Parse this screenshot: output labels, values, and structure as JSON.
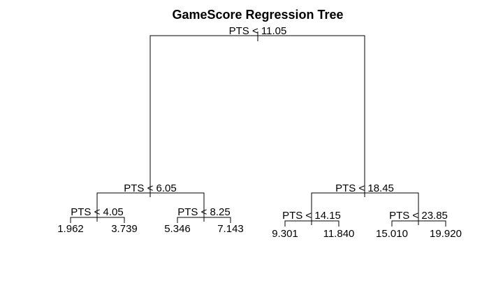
{
  "title": "GameScore Regression Tree",
  "splits": {
    "root": "PTS < 11.05",
    "left": "PTS < 6.05",
    "right": "PTS < 18.45",
    "left_left": "PTS < 4.05",
    "left_right": "PTS < 8.25",
    "right_left": "PTS < 14.15",
    "right_right": "PTS < 23.85"
  },
  "leaves": {
    "ll_l": "1.962",
    "ll_r": "3.739",
    "lr_l": "5.346",
    "lr_r": "7.143",
    "rl_l": "9.301",
    "rl_r": "11.840",
    "rr_l": "15.010",
    "rr_r": "19.920"
  }
}
